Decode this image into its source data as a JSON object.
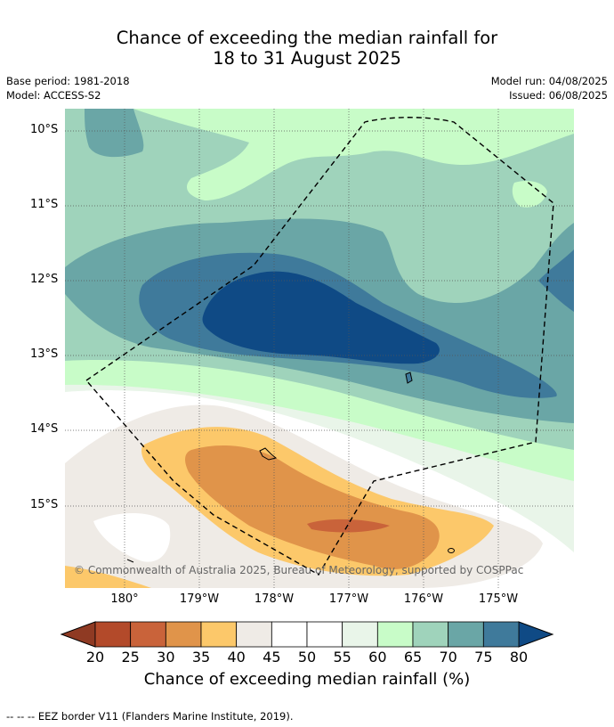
{
  "title_line1": "Chance of exceeding the median rainfall for",
  "title_line2": "18 to 31 August 2025",
  "base_period": "Base period: 1981-2018",
  "model": "Model: ACCESS-S2",
  "model_run": "Model run: 04/08/2025",
  "issued": "Issued: 06/08/2025",
  "lat_labels": [
    "10°S",
    "11°S",
    "12°S",
    "13°S",
    "14°S",
    "15°S"
  ],
  "lon_labels": [
    "180°",
    "179°W",
    "178°W",
    "177°W",
    "176°W",
    "175°W"
  ],
  "copyright": "© Commonwealth of Australia 2025, Bureau of Meteorology, supported by COSPPac",
  "colorbar": {
    "ticks": [
      "20",
      "25",
      "30",
      "35",
      "40",
      "45",
      "50",
      "55",
      "60",
      "65",
      "70",
      "75",
      "80"
    ],
    "label": "Chance of exceeding median rainfall (%)",
    "colors": [
      "#b34a2a",
      "#c9633a",
      "#e0944a",
      "#fcc86a",
      "#efebe6",
      "#ffffff",
      "#ffffff",
      "#e9f5e9",
      "#c8fcc8",
      "#9fd3bb",
      "#6aa6a6",
      "#3f7a9b"
    ],
    "under_color": "#8f3a23",
    "over_color": "#0f4a85"
  },
  "legend_text": "--  --  -- EEZ border V11 (Flanders Marine Institute, 2019)."
}
